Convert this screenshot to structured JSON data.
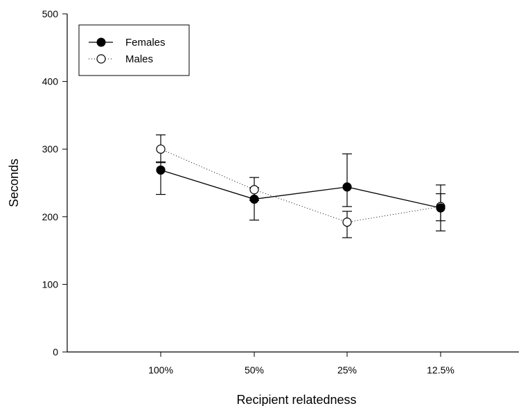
{
  "chart_data": {
    "type": "line",
    "title": "",
    "xlabel": "Recipient relatedness",
    "ylabel": "Seconds",
    "categories": [
      "100%",
      "50%",
      "25%",
      "12.5%"
    ],
    "ylim": [
      0,
      500
    ],
    "yticks": [
      0,
      100,
      200,
      300,
      400,
      500
    ],
    "grid": false,
    "legend_position": "top-left",
    "series": [
      {
        "name": "Females",
        "marker": "filled-circle",
        "line_style": "solid",
        "color": "#000000",
        "values": [
          269,
          226,
          244,
          213
        ],
        "error_low": [
          233,
          195,
          215,
          194
        ],
        "error_high": [
          281,
          258,
          293,
          234
        ]
      },
      {
        "name": "Males",
        "marker": "open-circle",
        "line_style": "dotted",
        "color": "#000000",
        "values": [
          300,
          240,
          192,
          215
        ],
        "error_low": [
          280,
          224,
          169,
          179
        ],
        "error_high": [
          321,
          243,
          208,
          247
        ]
      }
    ]
  }
}
